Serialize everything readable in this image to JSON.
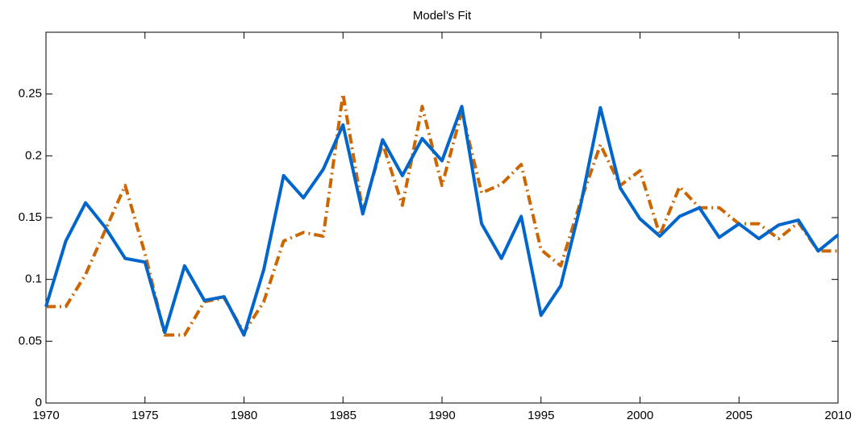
{
  "chart_data": {
    "type": "line",
    "title": "Model’s Fit",
    "x": [
      1970,
      1971,
      1972,
      1973,
      1974,
      1975,
      1976,
      1977,
      1978,
      1979,
      1980,
      1981,
      1982,
      1983,
      1984,
      1985,
      1986,
      1987,
      1988,
      1989,
      1990,
      1991,
      1992,
      1993,
      1994,
      1995,
      1996,
      1997,
      1998,
      1999,
      2000,
      2001,
      2002,
      2003,
      2004,
      2005,
      2006,
      2007,
      2008,
      2009,
      2010
    ],
    "series": [
      {
        "color": "#0066cc",
        "linestyle": "solid",
        "values": [
          0.078,
          0.131,
          0.162,
          0.142,
          0.117,
          0.114,
          0.057,
          0.111,
          0.083,
          0.086,
          0.055,
          0.108,
          0.184,
          0.166,
          0.189,
          0.225,
          0.153,
          0.213,
          0.184,
          0.214,
          0.196,
          0.24,
          0.145,
          0.117,
          0.151,
          0.071,
          0.095,
          0.16,
          0.239,
          0.174,
          0.149,
          0.135,
          0.151,
          0.158,
          0.134,
          0.145,
          0.133,
          0.144,
          0.148,
          0.123,
          0.136
        ]
      },
      {
        "color": "#cc6600",
        "linestyle": "dash-dot",
        "values": [
          0.078,
          0.078,
          0.104,
          0.14,
          0.176,
          0.121,
          0.055,
          0.055,
          0.082,
          0.085,
          0.057,
          0.082,
          0.131,
          0.138,
          0.135,
          0.25,
          0.155,
          0.21,
          0.16,
          0.24,
          0.176,
          0.236,
          0.17,
          0.177,
          0.193,
          0.124,
          0.111,
          0.163,
          0.209,
          0.176,
          0.188,
          0.136,
          0.175,
          0.158,
          0.158,
          0.145,
          0.145,
          0.133,
          0.146,
          0.123,
          0.123
        ]
      }
    ],
    "xlim": [
      1970,
      2010
    ],
    "xticks": [
      1970,
      1975,
      1980,
      1985,
      1990,
      1995,
      2000,
      2005,
      2010
    ],
    "ylim": [
      0,
      0.3
    ],
    "yticks": [
      0,
      0.05,
      0.1,
      0.15,
      0.2,
      0.25
    ],
    "grid": false
  }
}
